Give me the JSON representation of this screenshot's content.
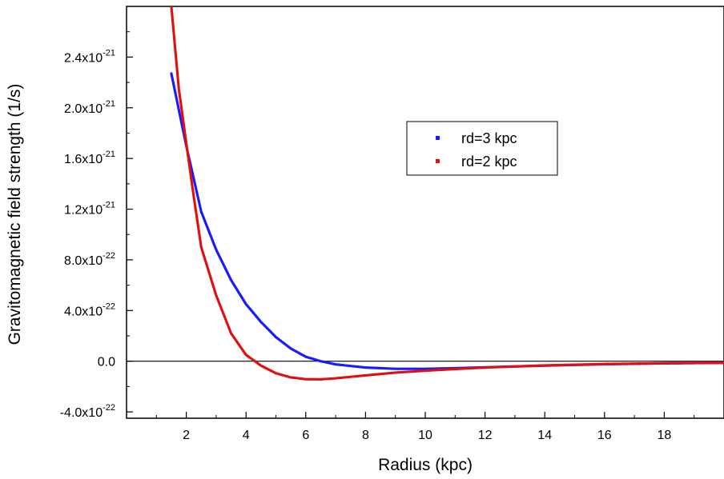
{
  "chart_data": {
    "type": "scatter",
    "xlabel": "Radius (kpc)",
    "ylabel": "Gravitomagnetic field strength (1/s)",
    "xlim": [
      0,
      20
    ],
    "ylim": [
      -4.5e-22,
      2.8e-21
    ],
    "x_ticks": [
      {
        "value": 2,
        "label": "2"
      },
      {
        "value": 4,
        "label": "4"
      },
      {
        "value": 6,
        "label": "6"
      },
      {
        "value": 8,
        "label": "8"
      },
      {
        "value": 10,
        "label": "10"
      },
      {
        "value": 12,
        "label": "12"
      },
      {
        "value": 14,
        "label": "14"
      },
      {
        "value": 16,
        "label": "16"
      },
      {
        "value": 18,
        "label": "18"
      }
    ],
    "y_ticks": [
      {
        "value": -4e-22,
        "mantissa": "-4.0x10",
        "exponent": "-22"
      },
      {
        "value": 0,
        "mantissa": "0.0",
        "exponent": ""
      },
      {
        "value": 4e-22,
        "mantissa": "4.0x10",
        "exponent": "-22"
      },
      {
        "value": 8e-22,
        "mantissa": "8.0x10",
        "exponent": "-22"
      },
      {
        "value": 1.2e-21,
        "mantissa": "1.2x10",
        "exponent": "-21"
      },
      {
        "value": 1.6e-21,
        "mantissa": "1.6x10",
        "exponent": "-21"
      },
      {
        "value": 2e-21,
        "mantissa": "2.0x10",
        "exponent": "-21"
      },
      {
        "value": 2.4e-21,
        "mantissa": "2.4x10",
        "exponent": "-21"
      }
    ],
    "zero_line": true,
    "legend_position": "center-right",
    "series": [
      {
        "name": "rd=3 kpc",
        "color": "#1a1aff",
        "x": [
          1.5,
          2.0,
          2.5,
          3.0,
          3.5,
          4.0,
          4.5,
          5.0,
          5.5,
          6.0,
          6.5,
          7.0,
          8.0,
          9.0,
          10.0,
          11.0,
          12.0,
          14.0,
          16.0,
          18.0,
          20.0
        ],
        "y": [
          2.27e-21,
          1.7e-21,
          1.18e-21,
          8.8e-22,
          6.4e-22,
          4.5e-22,
          3.1e-22,
          1.9e-22,
          1e-22,
          3.5e-23,
          0.0,
          -2.5e-23,
          -5e-23,
          -6e-23,
          -6e-23,
          -5.5e-23,
          -4.8e-23,
          -3.5e-23,
          -2.4e-23,
          -1.7e-23,
          -1.3e-23
        ]
      },
      {
        "name": "rd=2 kpc",
        "color": "#e01010",
        "x": [
          1.5,
          1.75,
          2.0,
          2.25,
          2.5,
          3.0,
          3.5,
          4.0,
          4.3,
          4.5,
          5.0,
          5.5,
          6.0,
          6.5,
          7.0,
          8.0,
          9.0,
          10.0,
          11.0,
          12.0,
          14.0,
          16.0,
          18.0,
          20.0
        ],
        "y": [
          2.8e-21,
          2.15e-21,
          1.72e-21,
          1.3e-21,
          9e-22,
          5.2e-22,
          2.2e-22,
          5e-23,
          0.0,
          -3.5e-23,
          -9.5e-23,
          -1.28e-22,
          -1.42e-22,
          -1.43e-22,
          -1.35e-22,
          -1.12e-22,
          -9e-23,
          -7.5e-23,
          -6.2e-23,
          -5e-23,
          -3.3e-23,
          -2.2e-23,
          -1.6e-23,
          -1.2e-23
        ]
      }
    ]
  }
}
